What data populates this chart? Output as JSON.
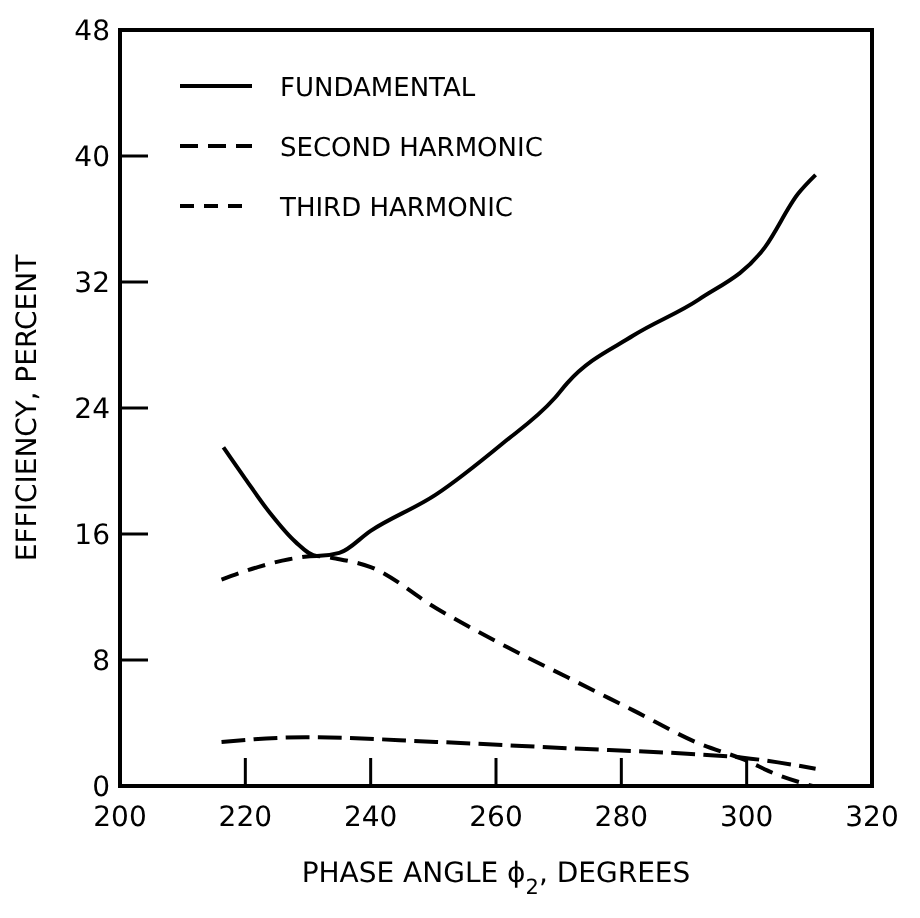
{
  "chart_data": {
    "type": "line",
    "xlabel": "PHASE ANGLE ϕ$_{2}$, DEGREES",
    "ylabel": "EFFICIENCY, PERCENT",
    "xlim": [
      200,
      320
    ],
    "xticks": [
      200,
      220,
      240,
      260,
      280,
      300,
      320
    ],
    "ylim": [
      0,
      48
    ],
    "yticks": [
      0,
      8,
      16,
      24,
      32,
      40,
      48
    ],
    "grid": false,
    "legend": "top left",
    "series": [
      {
        "name": "FUNDAMENTAL",
        "color": "#000000",
        "line_style": "solid",
        "x": [
          216.5,
          220,
          224,
          228,
          231.4,
          235,
          240,
          250.4,
          260.9,
          269.3,
          271.4,
          281.9,
          292.4,
          302.9,
          308.2,
          311
        ],
        "values": [
          21.5,
          19.5,
          17.3,
          15.5,
          14.6,
          14.8,
          16.2,
          18.5,
          21.7,
          24.6,
          25.6,
          28.6,
          30.9,
          34.2,
          37.6,
          38.8
        ]
      },
      {
        "name": "SECOND HARMONIC",
        "color": "#000000",
        "line_style": "dashed",
        "x": [
          216.2,
          222,
          227,
          231.4,
          235,
          240,
          250.4,
          260.9,
          271.4,
          281.9,
          292.4,
          299.4,
          305,
          310.5
        ],
        "values": [
          13.1,
          13.9,
          14.4,
          14.6,
          14.4,
          13.9,
          11.3,
          9.0,
          6.9,
          4.8,
          2.7,
          1.7,
          0.7,
          0
        ]
      },
      {
        "name": "THIRD HARMONIC",
        "color": "#000000",
        "line_style": "dashed",
        "x": [
          216.2,
          229.6,
          250.4,
          271.4,
          292.4,
          299.4,
          305,
          311
        ],
        "values": [
          2.8,
          3.1,
          2.8,
          2.4,
          2.0,
          1.8,
          1.5,
          1.1
        ]
      }
    ]
  }
}
